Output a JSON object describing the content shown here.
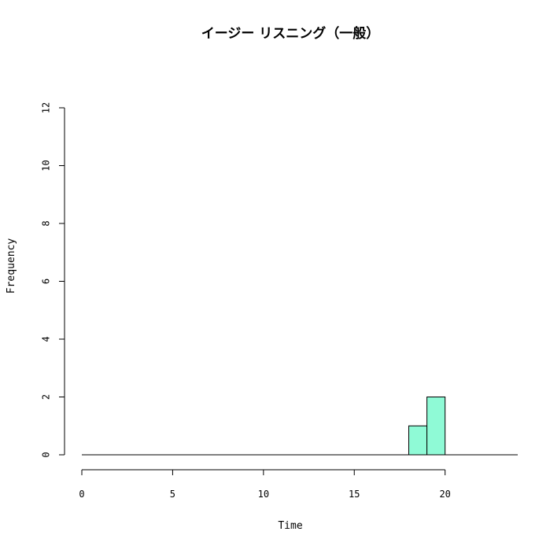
{
  "chart_data": {
    "type": "bar",
    "title": "イージー リスニング（一般）",
    "xlabel": "Time",
    "ylabel": "Frequency",
    "xlim": [
      0,
      24
    ],
    "ylim": [
      0,
      12
    ],
    "x_ticks": [
      0,
      5,
      10,
      15,
      20
    ],
    "y_ticks": [
      0,
      2,
      4,
      6,
      8,
      10,
      12
    ],
    "bins": [
      {
        "start": 18,
        "end": 19,
        "count": 1
      },
      {
        "start": 19,
        "end": 20,
        "count": 2
      }
    ],
    "bar_color": "#8ffad6",
    "grid": false
  }
}
